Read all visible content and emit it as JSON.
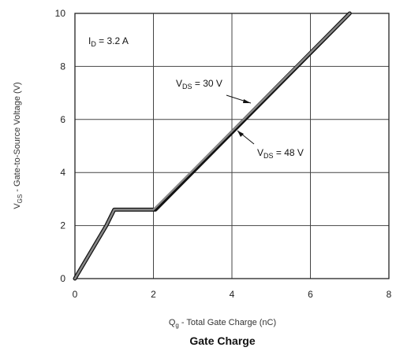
{
  "chart_data": {
    "type": "line",
    "title": "Gate Charge",
    "xlabel": {
      "main": "Q",
      "sub": "g",
      "rest": " - Total Gate Charge (nC)"
    },
    "ylabel": {
      "main": "V",
      "sub": "GS",
      "rest": " - Gate-to-Source Voltage (V)"
    },
    "xlim": [
      0,
      8
    ],
    "ylim": [
      0,
      10
    ],
    "xticks": [
      "0",
      "2",
      "4",
      "6",
      "8"
    ],
    "yticks": [
      "0",
      "2",
      "4",
      "6",
      "8",
      "10"
    ],
    "grid": true,
    "annotations": [
      {
        "main": "I",
        "sub": "D",
        "rest": " = 3.2 A"
      },
      {
        "main": "V",
        "sub": "DS",
        "rest": " = 30 V"
      },
      {
        "main": "V",
        "sub": "DS",
        "rest": " = 48 V"
      }
    ],
    "series": [
      {
        "label_ref": 1,
        "color": "#111111",
        "x": [
          0,
          0.8,
          1.0,
          2.05,
          7.0
        ],
        "y": [
          0,
          2.0,
          2.6,
          2.6,
          10.0
        ]
      },
      {
        "label_ref": 2,
        "color": "#888888",
        "x": [
          0,
          0.8,
          1.0,
          2.0,
          7.0
        ],
        "y": [
          0,
          2.0,
          2.6,
          2.6,
          10.0
        ]
      }
    ]
  }
}
